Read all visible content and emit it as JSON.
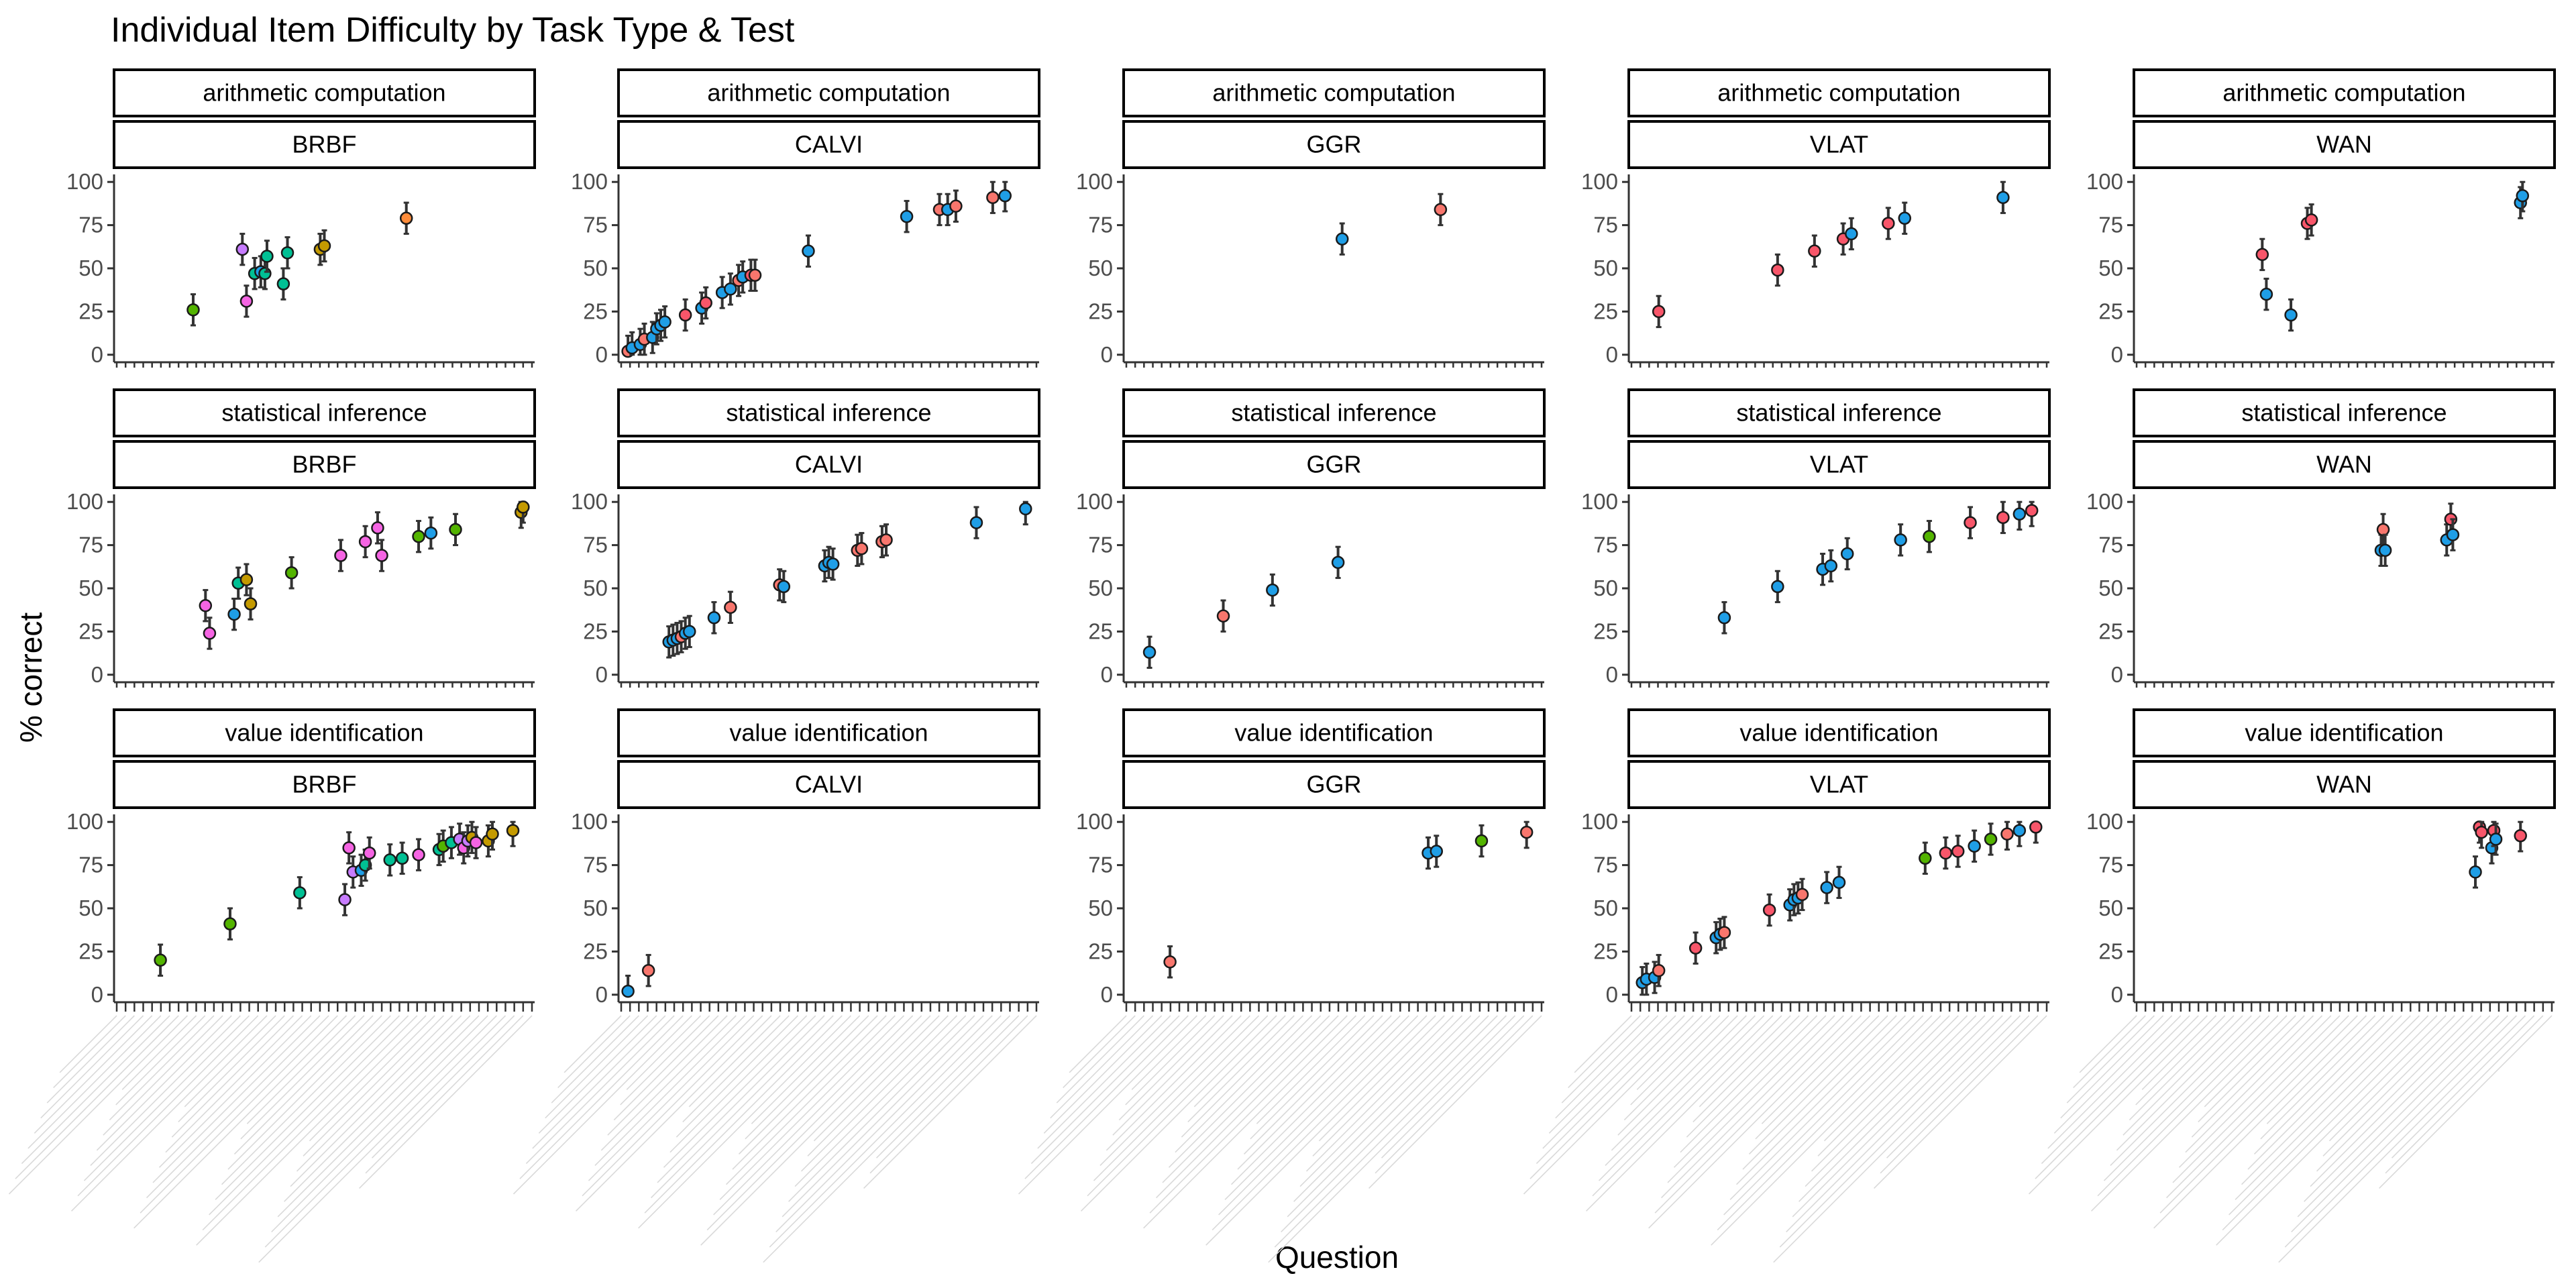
{
  "chart_data": {
    "type": "scatter",
    "title": "Individual Item Difficulty by Task Type & Test",
    "xlabel": "Question",
    "ylabel": "% correct",
    "ylim": [
      0,
      100
    ],
    "yticks": [
      0,
      25,
      50,
      75,
      100
    ],
    "rows": [
      "arithmetic computation",
      "statistical inference",
      "value identification"
    ],
    "cols": [
      "BRBF",
      "CALVI",
      "GGR",
      "VLAT",
      "WAN"
    ],
    "grid": false,
    "legend": "none",
    "error_bars": true,
    "series_colors": {
      "blue": "#1f9ee6",
      "red": "#f8766d",
      "pink": "#f564e3",
      "rose": "#f8566a",
      "green": "#53b400",
      "olive": "#c49a00",
      "violet": "#c77cff",
      "teal": "#00c094",
      "orange": "#ff8c3a"
    },
    "panels": [
      {
        "row": 0,
        "col": 0,
        "points": [
          {
            "x": 0.18,
            "y": 26,
            "c": "green"
          },
          {
            "x": 0.3,
            "y": 61,
            "c": "violet"
          },
          {
            "x": 0.31,
            "y": 31,
            "c": "pink"
          },
          {
            "x": 0.33,
            "y": 47,
            "c": "teal"
          },
          {
            "x": 0.345,
            "y": 48,
            "c": "blue"
          },
          {
            "x": 0.355,
            "y": 47,
            "c": "teal"
          },
          {
            "x": 0.36,
            "y": 57,
            "c": "teal"
          },
          {
            "x": 0.4,
            "y": 41,
            "c": "teal"
          },
          {
            "x": 0.41,
            "y": 59,
            "c": "teal"
          },
          {
            "x": 0.49,
            "y": 61,
            "c": "olive"
          },
          {
            "x": 0.5,
            "y": 63,
            "c": "olive"
          },
          {
            "x": 0.7,
            "y": 79,
            "c": "orange"
          }
        ]
      },
      {
        "row": 0,
        "col": 1,
        "points": [
          {
            "x": 0.01,
            "y": 2,
            "c": "red"
          },
          {
            "x": 0.02,
            "y": 4,
            "c": "blue"
          },
          {
            "x": 0.04,
            "y": 6,
            "c": "blue"
          },
          {
            "x": 0.05,
            "y": 9,
            "c": "red"
          },
          {
            "x": 0.07,
            "y": 10,
            "c": "blue"
          },
          {
            "x": 0.08,
            "y": 15,
            "c": "blue"
          },
          {
            "x": 0.09,
            "y": 17,
            "c": "blue"
          },
          {
            "x": 0.1,
            "y": 19,
            "c": "blue"
          },
          {
            "x": 0.15,
            "y": 23,
            "c": "rose"
          },
          {
            "x": 0.19,
            "y": 27,
            "c": "blue"
          },
          {
            "x": 0.2,
            "y": 30,
            "c": "rose"
          },
          {
            "x": 0.24,
            "y": 36,
            "c": "blue"
          },
          {
            "x": 0.26,
            "y": 38,
            "c": "blue"
          },
          {
            "x": 0.28,
            "y": 43,
            "c": "red"
          },
          {
            "x": 0.29,
            "y": 45,
            "c": "blue"
          },
          {
            "x": 0.31,
            "y": 46,
            "c": "rose"
          },
          {
            "x": 0.32,
            "y": 46,
            "c": "red"
          },
          {
            "x": 0.45,
            "y": 60,
            "c": "blue"
          },
          {
            "x": 0.69,
            "y": 80,
            "c": "blue"
          },
          {
            "x": 0.77,
            "y": 84,
            "c": "red"
          },
          {
            "x": 0.79,
            "y": 84,
            "c": "blue"
          },
          {
            "x": 0.81,
            "y": 86,
            "c": "red"
          },
          {
            "x": 0.9,
            "y": 91,
            "c": "red"
          },
          {
            "x": 0.93,
            "y": 92,
            "c": "blue"
          }
        ]
      },
      {
        "row": 0,
        "col": 2,
        "points": [
          {
            "x": 0.52,
            "y": 67,
            "c": "blue"
          },
          {
            "x": 0.76,
            "y": 84,
            "c": "red"
          }
        ]
      },
      {
        "row": 0,
        "col": 3,
        "points": [
          {
            "x": 0.06,
            "y": 25,
            "c": "rose"
          },
          {
            "x": 0.35,
            "y": 49,
            "c": "rose"
          },
          {
            "x": 0.44,
            "y": 60,
            "c": "rose"
          },
          {
            "x": 0.51,
            "y": 67,
            "c": "rose"
          },
          {
            "x": 0.53,
            "y": 70,
            "c": "blue"
          },
          {
            "x": 0.62,
            "y": 76,
            "c": "rose"
          },
          {
            "x": 0.66,
            "y": 79,
            "c": "blue"
          },
          {
            "x": 0.9,
            "y": 91,
            "c": "blue"
          }
        ]
      },
      {
        "row": 0,
        "col": 4,
        "points": [
          {
            "x": 0.3,
            "y": 58,
            "c": "rose"
          },
          {
            "x": 0.31,
            "y": 35,
            "c": "blue"
          },
          {
            "x": 0.37,
            "y": 23,
            "c": "blue"
          },
          {
            "x": 0.41,
            "y": 76,
            "c": "rose"
          },
          {
            "x": 0.42,
            "y": 78,
            "c": "rose"
          },
          {
            "x": 0.93,
            "y": 88,
            "c": "blue"
          },
          {
            "x": 0.935,
            "y": 92,
            "c": "blue"
          }
        ]
      },
      {
        "row": 1,
        "col": 0,
        "points": [
          {
            "x": 0.21,
            "y": 40,
            "c": "pink"
          },
          {
            "x": 0.22,
            "y": 24,
            "c": "pink"
          },
          {
            "x": 0.28,
            "y": 35,
            "c": "blue"
          },
          {
            "x": 0.29,
            "y": 53,
            "c": "teal"
          },
          {
            "x": 0.31,
            "y": 55,
            "c": "olive"
          },
          {
            "x": 0.32,
            "y": 41,
            "c": "olive"
          },
          {
            "x": 0.42,
            "y": 59,
            "c": "green"
          },
          {
            "x": 0.54,
            "y": 69,
            "c": "pink"
          },
          {
            "x": 0.6,
            "y": 77,
            "c": "pink"
          },
          {
            "x": 0.63,
            "y": 85,
            "c": "pink"
          },
          {
            "x": 0.64,
            "y": 69,
            "c": "pink"
          },
          {
            "x": 0.73,
            "y": 80,
            "c": "green"
          },
          {
            "x": 0.76,
            "y": 82,
            "c": "blue"
          },
          {
            "x": 0.82,
            "y": 84,
            "c": "green"
          },
          {
            "x": 0.98,
            "y": 94,
            "c": "olive"
          },
          {
            "x": 0.985,
            "y": 97,
            "c": "olive"
          }
        ]
      },
      {
        "row": 1,
        "col": 1,
        "points": [
          {
            "x": 0.11,
            "y": 19,
            "c": "blue"
          },
          {
            "x": 0.12,
            "y": 20,
            "c": "blue"
          },
          {
            "x": 0.13,
            "y": 21,
            "c": "blue"
          },
          {
            "x": 0.14,
            "y": 22,
            "c": "red"
          },
          {
            "x": 0.15,
            "y": 24,
            "c": "blue"
          },
          {
            "x": 0.16,
            "y": 25,
            "c": "blue"
          },
          {
            "x": 0.22,
            "y": 33,
            "c": "blue"
          },
          {
            "x": 0.26,
            "y": 39,
            "c": "red"
          },
          {
            "x": 0.38,
            "y": 52,
            "c": "red"
          },
          {
            "x": 0.39,
            "y": 51,
            "c": "blue"
          },
          {
            "x": 0.49,
            "y": 63,
            "c": "blue"
          },
          {
            "x": 0.5,
            "y": 65,
            "c": "blue"
          },
          {
            "x": 0.51,
            "y": 64,
            "c": "blue"
          },
          {
            "x": 0.57,
            "y": 72,
            "c": "red"
          },
          {
            "x": 0.58,
            "y": 73,
            "c": "red"
          },
          {
            "x": 0.63,
            "y": 77,
            "c": "red"
          },
          {
            "x": 0.64,
            "y": 78,
            "c": "red"
          },
          {
            "x": 0.86,
            "y": 88,
            "c": "blue"
          },
          {
            "x": 0.98,
            "y": 96,
            "c": "blue"
          }
        ]
      },
      {
        "row": 1,
        "col": 2,
        "points": [
          {
            "x": 0.05,
            "y": 13,
            "c": "blue"
          },
          {
            "x": 0.23,
            "y": 34,
            "c": "red"
          },
          {
            "x": 0.35,
            "y": 49,
            "c": "blue"
          },
          {
            "x": 0.51,
            "y": 65,
            "c": "blue"
          }
        ]
      },
      {
        "row": 1,
        "col": 3,
        "points": [
          {
            "x": 0.22,
            "y": 33,
            "c": "blue"
          },
          {
            "x": 0.35,
            "y": 51,
            "c": "blue"
          },
          {
            "x": 0.46,
            "y": 61,
            "c": "blue"
          },
          {
            "x": 0.48,
            "y": 63,
            "c": "blue"
          },
          {
            "x": 0.52,
            "y": 70,
            "c": "blue"
          },
          {
            "x": 0.65,
            "y": 78,
            "c": "blue"
          },
          {
            "x": 0.72,
            "y": 80,
            "c": "green"
          },
          {
            "x": 0.82,
            "y": 88,
            "c": "rose"
          },
          {
            "x": 0.9,
            "y": 91,
            "c": "rose"
          },
          {
            "x": 0.94,
            "y": 93,
            "c": "blue"
          },
          {
            "x": 0.97,
            "y": 95,
            "c": "rose"
          }
        ]
      },
      {
        "row": 1,
        "col": 4,
        "points": [
          {
            "x": 0.59,
            "y": 72,
            "c": "blue"
          },
          {
            "x": 0.595,
            "y": 84,
            "c": "red"
          },
          {
            "x": 0.6,
            "y": 72,
            "c": "blue"
          },
          {
            "x": 0.75,
            "y": 78,
            "c": "blue"
          },
          {
            "x": 0.76,
            "y": 90,
            "c": "rose"
          },
          {
            "x": 0.765,
            "y": 81,
            "c": "blue"
          }
        ]
      },
      {
        "row": 2,
        "col": 0,
        "points": [
          {
            "x": 0.1,
            "y": 20,
            "c": "green"
          },
          {
            "x": 0.27,
            "y": 41,
            "c": "green"
          },
          {
            "x": 0.44,
            "y": 59,
            "c": "teal"
          },
          {
            "x": 0.55,
            "y": 55,
            "c": "violet"
          },
          {
            "x": 0.56,
            "y": 85,
            "c": "pink"
          },
          {
            "x": 0.57,
            "y": 71,
            "c": "violet"
          },
          {
            "x": 0.59,
            "y": 72,
            "c": "blue"
          },
          {
            "x": 0.6,
            "y": 75,
            "c": "teal"
          },
          {
            "x": 0.61,
            "y": 82,
            "c": "pink"
          },
          {
            "x": 0.66,
            "y": 78,
            "c": "teal"
          },
          {
            "x": 0.69,
            "y": 79,
            "c": "teal"
          },
          {
            "x": 0.73,
            "y": 81,
            "c": "pink"
          },
          {
            "x": 0.78,
            "y": 84,
            "c": "teal"
          },
          {
            "x": 0.79,
            "y": 86,
            "c": "green"
          },
          {
            "x": 0.81,
            "y": 88,
            "c": "teal"
          },
          {
            "x": 0.83,
            "y": 90,
            "c": "violet"
          },
          {
            "x": 0.84,
            "y": 85,
            "c": "pink"
          },
          {
            "x": 0.85,
            "y": 89,
            "c": "violet"
          },
          {
            "x": 0.86,
            "y": 91,
            "c": "olive"
          },
          {
            "x": 0.87,
            "y": 88,
            "c": "pink"
          },
          {
            "x": 0.9,
            "y": 89,
            "c": "olive"
          },
          {
            "x": 0.91,
            "y": 93,
            "c": "olive"
          },
          {
            "x": 0.96,
            "y": 95,
            "c": "olive"
          }
        ]
      },
      {
        "row": 2,
        "col": 1,
        "points": [
          {
            "x": 0.01,
            "y": 2,
            "c": "blue"
          },
          {
            "x": 0.06,
            "y": 14,
            "c": "red"
          }
        ]
      },
      {
        "row": 2,
        "col": 2,
        "points": [
          {
            "x": 0.1,
            "y": 19,
            "c": "red"
          },
          {
            "x": 0.73,
            "y": 82,
            "c": "blue"
          },
          {
            "x": 0.75,
            "y": 83,
            "c": "blue"
          },
          {
            "x": 0.86,
            "y": 89,
            "c": "green"
          },
          {
            "x": 0.97,
            "y": 94,
            "c": "red"
          }
        ]
      },
      {
        "row": 2,
        "col": 3,
        "points": [
          {
            "x": 0.02,
            "y": 7,
            "c": "blue"
          },
          {
            "x": 0.03,
            "y": 9,
            "c": "blue"
          },
          {
            "x": 0.05,
            "y": 10,
            "c": "blue"
          },
          {
            "x": 0.06,
            "y": 14,
            "c": "red"
          },
          {
            "x": 0.15,
            "y": 27,
            "c": "rose"
          },
          {
            "x": 0.2,
            "y": 33,
            "c": "blue"
          },
          {
            "x": 0.21,
            "y": 35,
            "c": "blue"
          },
          {
            "x": 0.22,
            "y": 36,
            "c": "red"
          },
          {
            "x": 0.33,
            "y": 49,
            "c": "rose"
          },
          {
            "x": 0.38,
            "y": 52,
            "c": "blue"
          },
          {
            "x": 0.39,
            "y": 55,
            "c": "blue"
          },
          {
            "x": 0.4,
            "y": 56,
            "c": "blue"
          },
          {
            "x": 0.41,
            "y": 58,
            "c": "red"
          },
          {
            "x": 0.47,
            "y": 62,
            "c": "blue"
          },
          {
            "x": 0.5,
            "y": 65,
            "c": "blue"
          },
          {
            "x": 0.71,
            "y": 79,
            "c": "green"
          },
          {
            "x": 0.76,
            "y": 82,
            "c": "rose"
          },
          {
            "x": 0.79,
            "y": 83,
            "c": "rose"
          },
          {
            "x": 0.83,
            "y": 86,
            "c": "blue"
          },
          {
            "x": 0.87,
            "y": 90,
            "c": "green"
          },
          {
            "x": 0.91,
            "y": 93,
            "c": "red"
          },
          {
            "x": 0.94,
            "y": 95,
            "c": "blue"
          },
          {
            "x": 0.98,
            "y": 97,
            "c": "rose"
          }
        ]
      },
      {
        "row": 2,
        "col": 4,
        "points": [
          {
            "x": 0.82,
            "y": 71,
            "c": "blue"
          },
          {
            "x": 0.83,
            "y": 97,
            "c": "rose"
          },
          {
            "x": 0.835,
            "y": 94,
            "c": "rose"
          },
          {
            "x": 0.86,
            "y": 85,
            "c": "blue"
          },
          {
            "x": 0.865,
            "y": 95,
            "c": "rose"
          },
          {
            "x": 0.87,
            "y": 90,
            "c": "blue"
          },
          {
            "x": 0.93,
            "y": 92,
            "c": "rose"
          }
        ]
      }
    ]
  }
}
